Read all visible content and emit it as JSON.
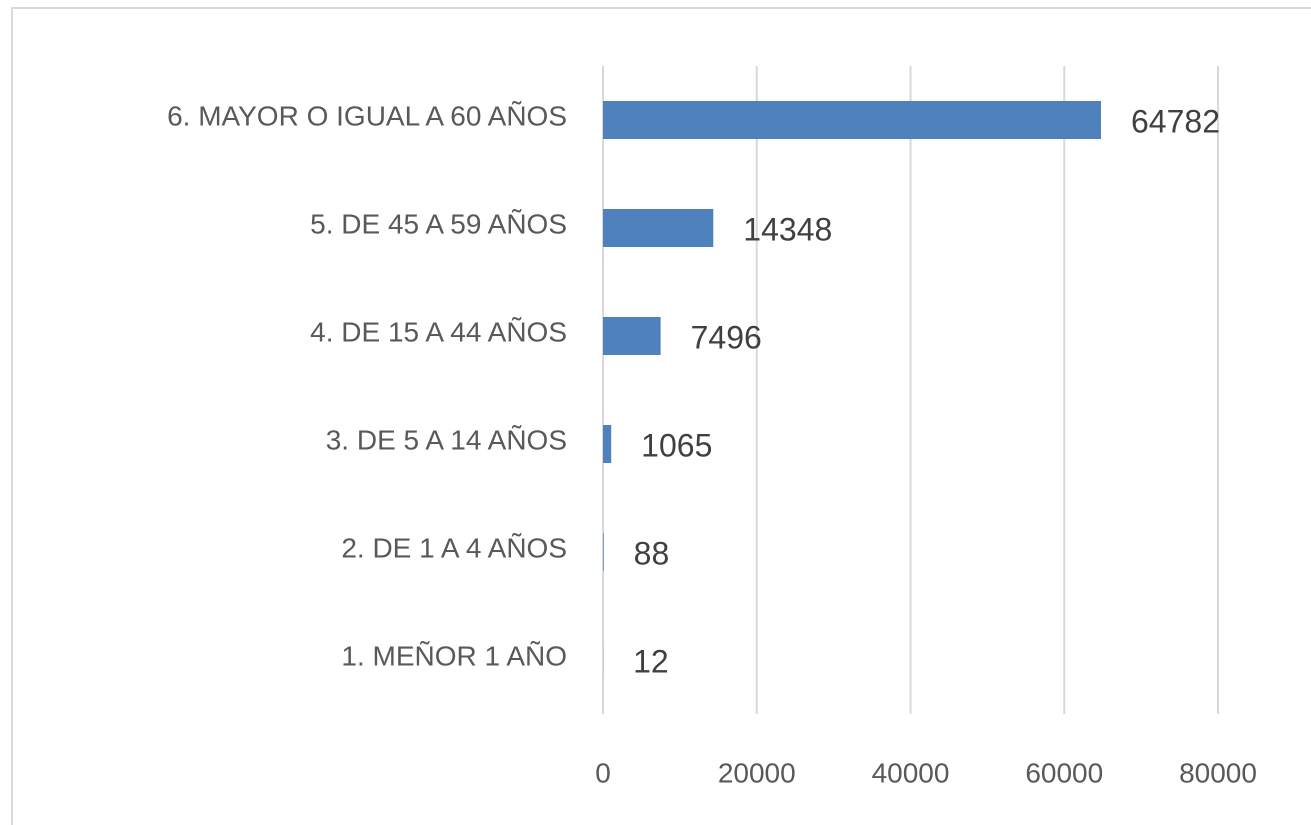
{
  "chart_data": {
    "type": "bar",
    "orientation": "horizontal",
    "categories": [
      "6. MAYOR O IGUAL A 60 AÑOS",
      "5. DE 45 A 59 AÑOS",
      "4. DE 15 A 44 AÑOS",
      "3. DE 5 A 14 AÑOS",
      "2. DE 1 A 4 AÑOS",
      "1. MEÑOR 1 AÑO"
    ],
    "values": [
      64782,
      14348,
      7496,
      1065,
      88,
      12
    ],
    "color": "#4f81bd",
    "xlim": [
      0,
      80000
    ],
    "xticks": [
      0,
      20000,
      40000,
      60000,
      80000
    ],
    "grid": true
  }
}
